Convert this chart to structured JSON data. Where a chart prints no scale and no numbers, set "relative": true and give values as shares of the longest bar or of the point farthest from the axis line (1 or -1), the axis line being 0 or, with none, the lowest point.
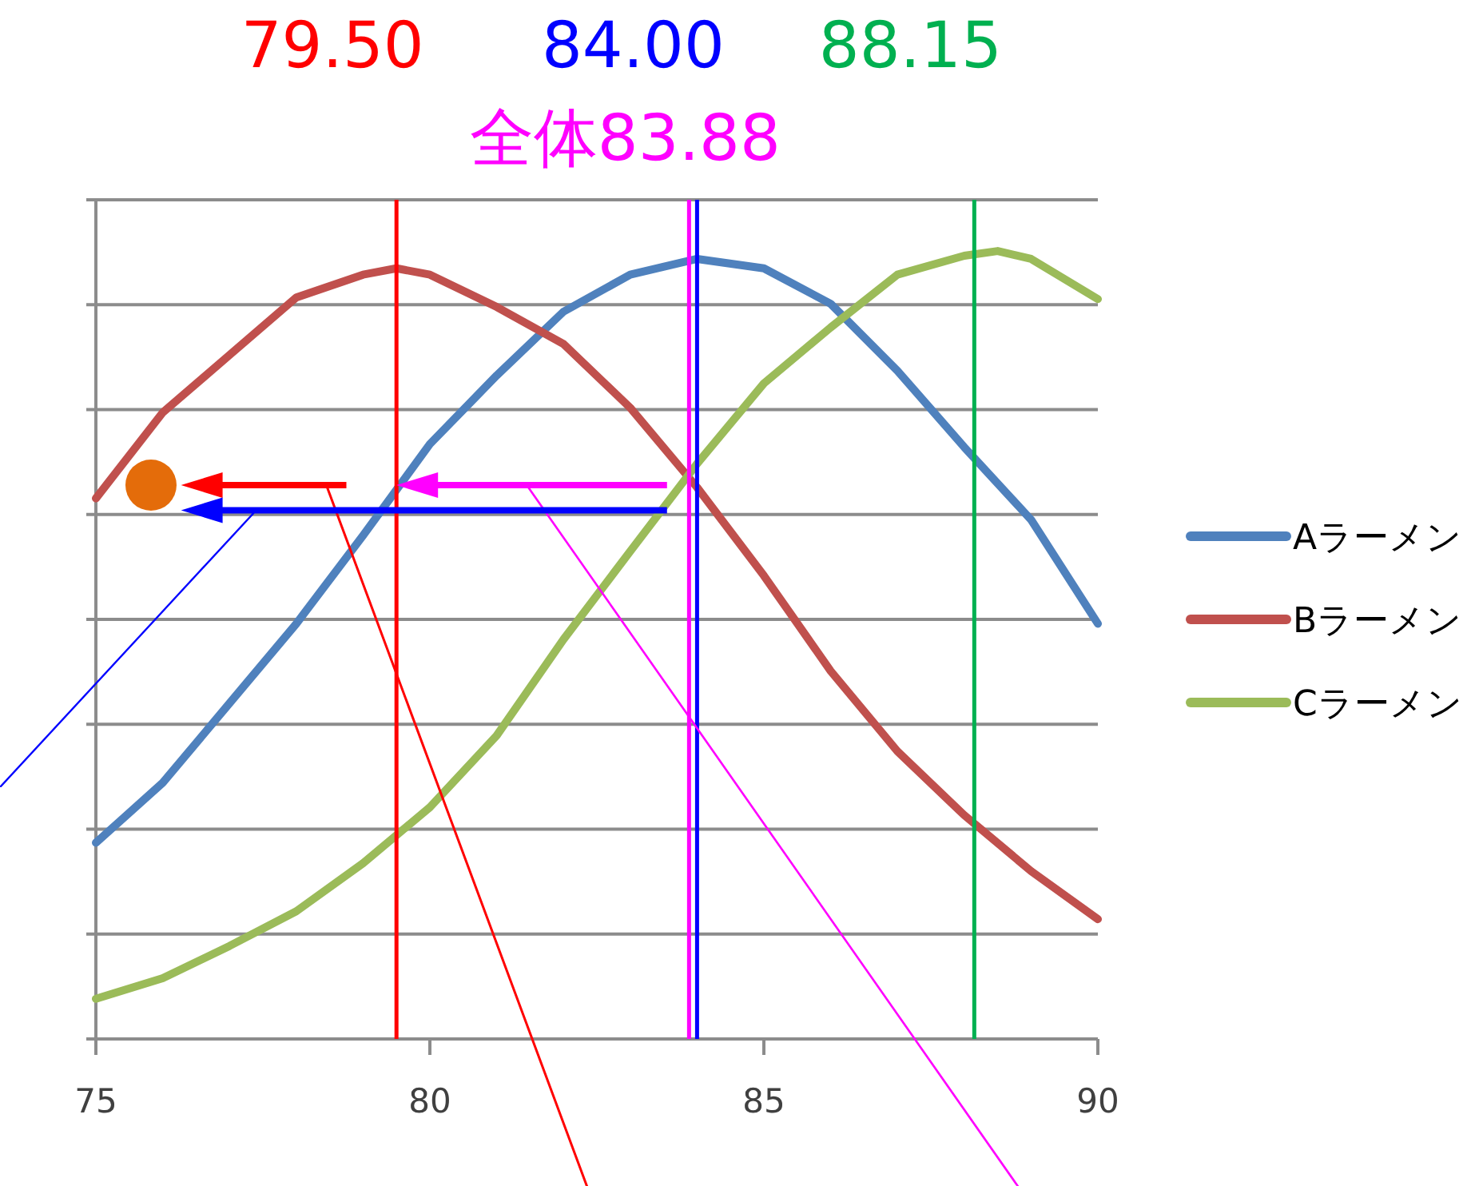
{
  "chart_data": {
    "type": "line",
    "relative": true,
    "xlim": [
      75,
      90
    ],
    "xticks": [
      75,
      80,
      85,
      90
    ],
    "grid": true,
    "legend": "right",
    "marker": "none",
    "line_style": "solid",
    "series": [
      {
        "name": "Aラーメン",
        "color": "#4f81bd",
        "x": [
          75,
          76,
          77,
          78,
          79,
          80,
          81,
          82,
          83,
          84,
          85,
          86,
          87,
          88,
          89,
          90
        ],
        "values": [
          0.249,
          0.325,
          0.426,
          0.527,
          0.639,
          0.755,
          0.842,
          0.923,
          0.97,
          0.99,
          0.978,
          0.933,
          0.848,
          0.751,
          0.659,
          0.527
        ]
      },
      {
        "name": "Bラーメン",
        "color": "#c0504d",
        "x": [
          75,
          76,
          77,
          78,
          79,
          79.5,
          80,
          81,
          82,
          83,
          84,
          85,
          86,
          87,
          88,
          89,
          90
        ],
        "values": [
          0.686,
          0.795,
          0.868,
          0.941,
          0.97,
          0.978,
          0.97,
          0.929,
          0.882,
          0.801,
          0.7,
          0.588,
          0.467,
          0.365,
          0.284,
          0.213,
          0.152
        ]
      },
      {
        "name": "Cラーメン",
        "color": "#9bbb59",
        "x": [
          75,
          76,
          77,
          78,
          79,
          80,
          81,
          82,
          83,
          84,
          85,
          86,
          87,
          88,
          88.5,
          89,
          90
        ],
        "values": [
          0.051,
          0.077,
          0.118,
          0.162,
          0.223,
          0.294,
          0.385,
          0.507,
          0.619,
          0.73,
          0.832,
          0.903,
          0.97,
          0.994,
          1.0,
          0.99,
          0.939
        ]
      }
    ],
    "ref_lines": [
      {
        "axis": "x",
        "value": 79.5,
        "label": "79.50",
        "color": "#ff0000"
      },
      {
        "axis": "x",
        "value": 84.0,
        "label": "84.00",
        "color": "#0000ff"
      },
      {
        "axis": "x",
        "value": 88.15,
        "label": "88.15",
        "color": "#00b050"
      },
      {
        "axis": "x",
        "value": 83.88,
        "label": "全体83.88",
        "color": "#ff00ff"
      }
    ]
  }
}
